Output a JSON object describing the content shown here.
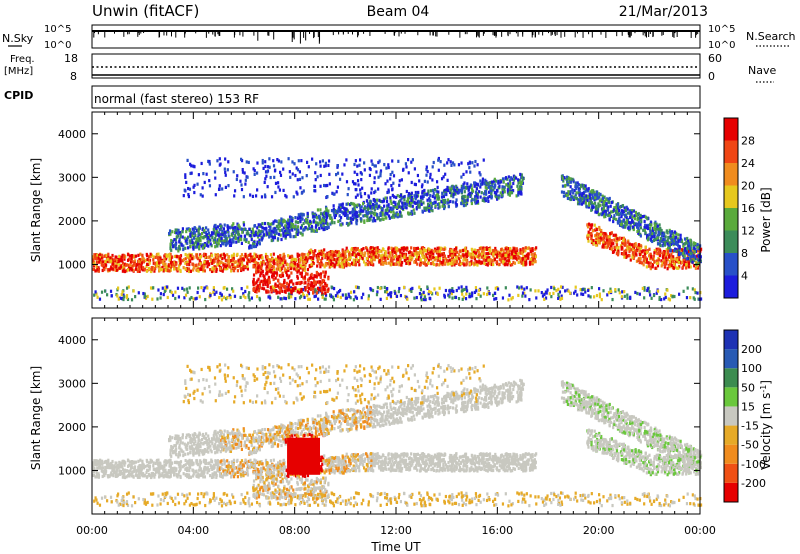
{
  "header": {
    "title": "Unwin (fitACF)",
    "beam": "Beam 04",
    "date": "21/Mar/2013"
  },
  "noise_panel": {
    "left_label": "N.Sky",
    "left_ticks": [
      "10^5",
      "10^0"
    ],
    "right_label": "N.Search",
    "right_ticks": [
      "10^5",
      "10^0"
    ]
  },
  "freq_panel": {
    "left_label_1": "Freq.",
    "left_label_2": "[MHz]",
    "left_ticks": [
      "18",
      "8"
    ],
    "right_label": "Nave",
    "right_ticks": [
      "60",
      "0"
    ]
  },
  "cpid_panel": {
    "label": "CPID",
    "text": "normal (fast stereo) 153 RF"
  },
  "colors": {
    "power_scale": [
      "#1c1cdc",
      "#2850c8",
      "#3c8c5a",
      "#5aaa3c",
      "#e6c81e",
      "#f08c1e",
      "#f04614",
      "#e60000"
    ],
    "velocity_scale": [
      "#e60000",
      "#f05014",
      "#f08c1e",
      "#e6aa28",
      "#c8c8c0",
      "#6ac83c",
      "#3c8c50",
      "#285ab4",
      "#1e32b4"
    ]
  },
  "chart_data": [
    {
      "type": "heatmap",
      "name": "power",
      "ylabel": "Slant Range [km]",
      "ylim": [
        0,
        4500
      ],
      "yticks": [
        1000,
        2000,
        3000,
        4000
      ],
      "xlim_hours": [
        0,
        24
      ],
      "xticks": [
        "00:00",
        "04:00",
        "08:00",
        "12:00",
        "16:00",
        "20:00",
        "00:00"
      ],
      "colorbar_label": "Power [dB]",
      "colorbar_ticks": [
        "4",
        "8",
        "12",
        "16",
        "20",
        "24",
        "28"
      ],
      "colorbar_range": [
        0,
        32
      ]
    },
    {
      "type": "heatmap",
      "name": "velocity",
      "ylabel": "Slant Range [km]",
      "ylim": [
        0,
        4500
      ],
      "yticks": [
        1000,
        2000,
        3000,
        4000
      ],
      "xlim_hours": [
        0,
        24
      ],
      "xticks": [
        "00:00",
        "04:00",
        "08:00",
        "12:00",
        "16:00",
        "20:00",
        "00:00"
      ],
      "xlabel": "Time UT",
      "colorbar_label": "Velocity [m s^-1]",
      "colorbar_ticks": [
        "200",
        "100",
        "50",
        "15",
        "-15",
        "-50",
        "-100",
        "-200"
      ]
    }
  ]
}
